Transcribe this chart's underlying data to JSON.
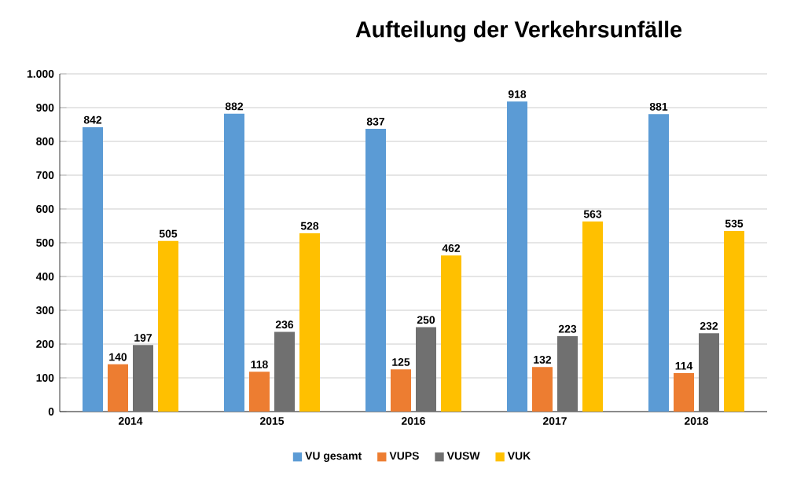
{
  "chart_data": {
    "type": "bar",
    "title": "Aufteilung der Verkehrsunfälle",
    "categories": [
      "2014",
      "2015",
      "2016",
      "2017",
      "2018"
    ],
    "series": [
      {
        "name": "VU gesamt",
        "color": "#5b9bd5",
        "values": [
          842,
          882,
          837,
          918,
          881
        ]
      },
      {
        "name": "VUPS",
        "color": "#ed7d31",
        "values": [
          140,
          118,
          125,
          132,
          114
        ]
      },
      {
        "name": "VUSW",
        "color": "#707070",
        "values": [
          197,
          236,
          250,
          223,
          232
        ]
      },
      {
        "name": "VUK",
        "color": "#ffc000",
        "values": [
          505,
          528,
          462,
          563,
          535
        ]
      }
    ],
    "ylim": [
      0,
      1000
    ],
    "yticks": [
      0,
      100,
      200,
      300,
      400,
      500,
      600,
      700,
      800,
      900,
      {
        "value": 1000,
        "label": "1.000"
      }
    ],
    "grid": "y",
    "legend": "bottom",
    "data_labels": true
  }
}
